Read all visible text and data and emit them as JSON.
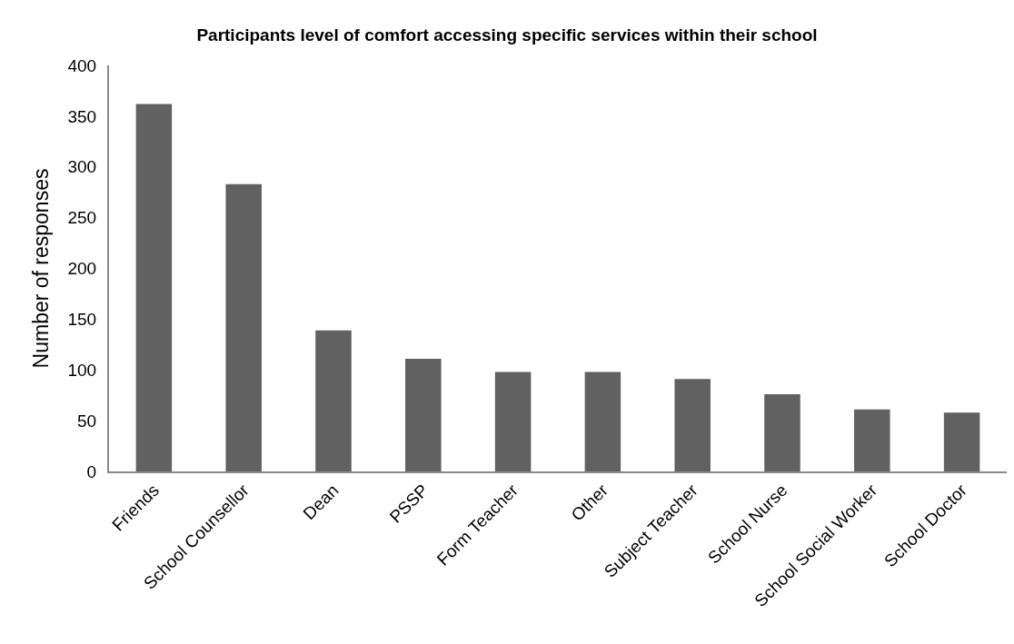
{
  "chart_data": {
    "type": "bar",
    "title": "Participants level of comfort accessing specific services within their school",
    "ylabel": "Number of responses",
    "categories": [
      "Friends",
      "School Counsellor",
      "Dean",
      "PSSP",
      "Form Teacher",
      "Other",
      "Subject Teacher",
      "School Nurse",
      "School Social Worker",
      "School Doctor"
    ],
    "values": [
      362,
      283,
      139,
      111,
      98,
      98,
      91,
      76,
      61,
      58
    ],
    "color": "#616161",
    "ylim": [
      0,
      400
    ],
    "yticks": [
      0,
      50,
      100,
      150,
      200,
      250,
      300,
      350,
      400
    ],
    "grid": false
  }
}
